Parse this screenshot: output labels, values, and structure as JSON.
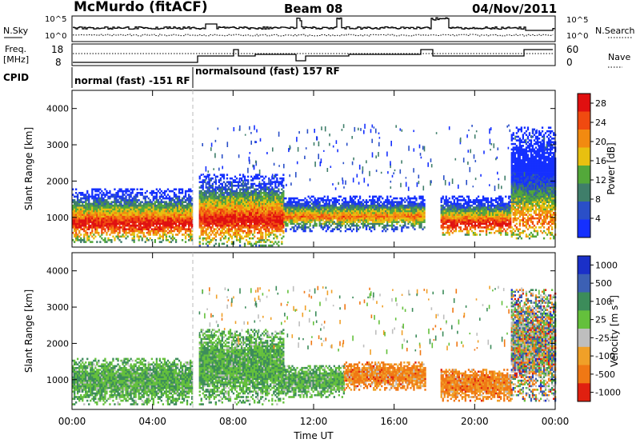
{
  "header": {
    "station": "McMurdo (fitACF)",
    "beam": "Beam 08",
    "date": "04/Nov/2011"
  },
  "status_panels": {
    "nsky": {
      "left_label": "N.Sky",
      "right_label": "N.Search",
      "ticks_left": [
        "10^5",
        "10^0"
      ],
      "ticks_right": [
        "10^5",
        "10^0"
      ]
    },
    "freq": {
      "left_label_1": "Freq.",
      "left_label_2": "[MHz]",
      "right_label": "Nave",
      "ticks_left": [
        "18",
        "8"
      ],
      "ticks_right": [
        "60",
        "0"
      ]
    },
    "cpid": {
      "label": "CPID",
      "modes": [
        "normal (fast) -151 RF",
        "normalsound (fast) 157 RF"
      ]
    }
  },
  "x_axis": {
    "label": "Time UT",
    "ticks": [
      "00:00",
      "04:00",
      "08:00",
      "12:00",
      "16:00",
      "20:00",
      "00:00"
    ]
  },
  "chart_data": [
    {
      "type": "heatmap",
      "title": "",
      "xlabel": "Time UT",
      "ylabel": "Slant Range [km]",
      "xlim": [
        0,
        24
      ],
      "ylim": [
        180,
        4500
      ],
      "yticks": [
        1000,
        2000,
        3000,
        4000
      ],
      "colorbar": {
        "label": "Power [dB]",
        "ticks": [
          4,
          8,
          12,
          16,
          20,
          24,
          28
        ],
        "range": [
          0,
          30
        ],
        "colors": [
          "#1530ff",
          "#2a4fc8",
          "#3f7e6a",
          "#53a83a",
          "#e8c010",
          "#f28a10",
          "#f04a10",
          "#e01010"
        ]
      },
      "regions": [
        {
          "t": [
            0.0,
            6.0
          ],
          "r": [
            300,
            1800
          ],
          "peak_r": 800,
          "level": "high"
        },
        {
          "t": [
            6.3,
            10.5
          ],
          "r": [
            200,
            2200
          ],
          "peak_r": 900,
          "level": "high"
        },
        {
          "t": [
            10.5,
            17.5
          ],
          "r": [
            600,
            1600
          ],
          "peak_r": 1000,
          "level": "mid"
        },
        {
          "t": [
            18.3,
            21.8
          ],
          "r": [
            500,
            1600
          ],
          "peak_r": 800,
          "level": "high"
        },
        {
          "t": [
            21.8,
            24.0
          ],
          "r": [
            400,
            3500
          ],
          "peak_r": 900,
          "level": "mid"
        }
      ]
    },
    {
      "type": "heatmap",
      "title": "",
      "xlabel": "Time UT",
      "ylabel": "Slant Range [km]",
      "xlim": [
        0,
        24
      ],
      "ylim": [
        180,
        4500
      ],
      "yticks": [
        1000,
        2000,
        3000,
        4000
      ],
      "colorbar": {
        "label": "Velocity [m s^-1]",
        "ticks": [
          "1000",
          "500",
          "100",
          "25",
          "-25",
          "-100",
          "-500",
          "-1000"
        ],
        "colors": [
          "#1a30c8",
          "#3c60b4",
          "#3c8c5a",
          "#64c03c",
          "#bebebe",
          "#f0a028",
          "#f07814",
          "#e02010"
        ]
      },
      "regions": [
        {
          "t": [
            0.0,
            6.0
          ],
          "r": [
            300,
            1600
          ],
          "sign": "positive"
        },
        {
          "t": [
            6.3,
            10.5
          ],
          "r": [
            300,
            2400
          ],
          "sign": "positive"
        },
        {
          "t": [
            10.5,
            13.5
          ],
          "r": [
            500,
            1400
          ],
          "sign": "positive"
        },
        {
          "t": [
            13.5,
            17.5
          ],
          "r": [
            700,
            1500
          ],
          "sign": "negative"
        },
        {
          "t": [
            18.3,
            21.8
          ],
          "r": [
            400,
            1300
          ],
          "sign": "negative"
        },
        {
          "t": [
            21.8,
            24.0
          ],
          "r": [
            400,
            3500
          ],
          "sign": "mixed"
        }
      ]
    }
  ]
}
